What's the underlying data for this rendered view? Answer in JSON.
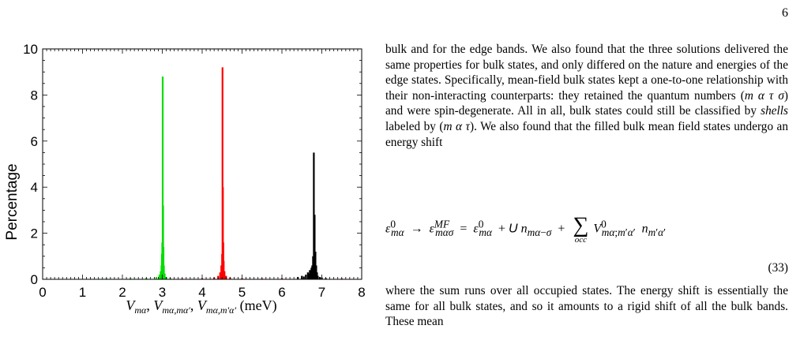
{
  "page_number": "6",
  "figure": {
    "ylabel": "Percentage",
    "xlabel": "V_mα, V_mα,mα′, V_mα,m′α′ (meV)",
    "xlabel_html": "<tspan font-style='italic'>V</tspan><tspan font-style='italic' font-size='12' dy='4'>mα</tspan><tspan dy='-4'>, </tspan><tspan font-style='italic'>V</tspan><tspan font-style='italic' font-size='12' dy='4'>mα,mα′</tspan><tspan dy='-4'>, </tspan><tspan font-style='italic'>V</tspan><tspan font-style='italic' font-size='12' dy='4'>mα,m′α′</tspan><tspan dy='-4'> (meV)</tspan>",
    "colors": {
      "green": "#00dd00",
      "red": "#ff0000",
      "black": "#000000"
    }
  },
  "chart_data": {
    "type": "bar",
    "xlim": [
      0,
      8
    ],
    "ylim": [
      0,
      10
    ],
    "xticks": [
      "0",
      "1",
      "2",
      "3",
      "4",
      "5",
      "6",
      "7",
      "8"
    ],
    "yticks": [
      "0",
      "2",
      "4",
      "6",
      "8",
      "10"
    ],
    "xlabel": "V_mα, V_mα,mα′, V_mα,m′α′ (meV)",
    "ylabel": "Percentage",
    "series": [
      {
        "color": "#00dd00",
        "x": [
          1.6,
          2.2,
          2.6,
          2.85,
          2.93,
          2.96,
          2.98,
          2.99,
          3.0,
          3.01,
          3.02,
          3.03,
          3.04,
          3.06,
          3.1,
          3.2
        ],
        "values": [
          0.04,
          0.04,
          0.06,
          0.1,
          0.2,
          0.35,
          0.6,
          1.1,
          1.6,
          8.8,
          3.2,
          1.4,
          0.6,
          0.25,
          0.1,
          0.05
        ]
      },
      {
        "color": "#ff0000",
        "x": [
          3.5,
          4.0,
          4.3,
          4.4,
          4.45,
          4.48,
          4.5,
          4.51,
          4.52,
          4.53,
          4.54,
          4.56,
          4.6,
          4.7,
          5.0,
          5.5,
          6.0,
          6.5,
          7.0,
          7.5
        ],
        "values": [
          0.04,
          0.05,
          0.08,
          0.15,
          0.3,
          0.6,
          1.1,
          9.2,
          4.0,
          1.6,
          0.8,
          0.35,
          0.15,
          0.08,
          0.05,
          0.04,
          0.05,
          0.05,
          0.04,
          0.04
        ]
      },
      {
        "color": "#000000",
        "x": [
          6.4,
          6.5,
          6.55,
          6.6,
          6.65,
          6.68,
          6.7,
          6.72,
          6.74,
          6.76,
          6.78,
          6.8,
          6.82,
          6.84,
          6.86,
          6.88,
          6.9,
          6.95,
          7.0,
          7.1
        ],
        "values": [
          0.1,
          0.15,
          0.12,
          0.2,
          0.3,
          0.25,
          0.4,
          0.35,
          0.5,
          0.6,
          1.0,
          5.5,
          2.8,
          1.2,
          0.6,
          0.3,
          0.15,
          0.1,
          0.08,
          0.05
        ]
      }
    ]
  },
  "text": {
    "para1": "bulk and for the edge bands. We also found that the three solutions delivered the same properties for bulk states, and only differed on the nature and energies of the edge states. Specifically, mean-field bulk states kept a one-to-one relationship with their non-interacting counterparts: they retained the quantum numbers (m α τ σ) and were spin-degenerate. All in all, bulk states could still be classified by shells labeled by (m α τ). We also found that the filled bulk mean field states undergo an energy shift",
    "equation_number": "(33)",
    "equation_text": "ε⁰_mα → ε^MF_mασ = ε⁰_mα + U n_mα−σ + Σ_occ V⁰_mα;m′α′ n_m′α′",
    "para2": "where the sum runs over all occupied states. The energy shift is essentially the same for all bulk states, and so it amounts to a rigid shift of all the bulk bands. These mean"
  }
}
